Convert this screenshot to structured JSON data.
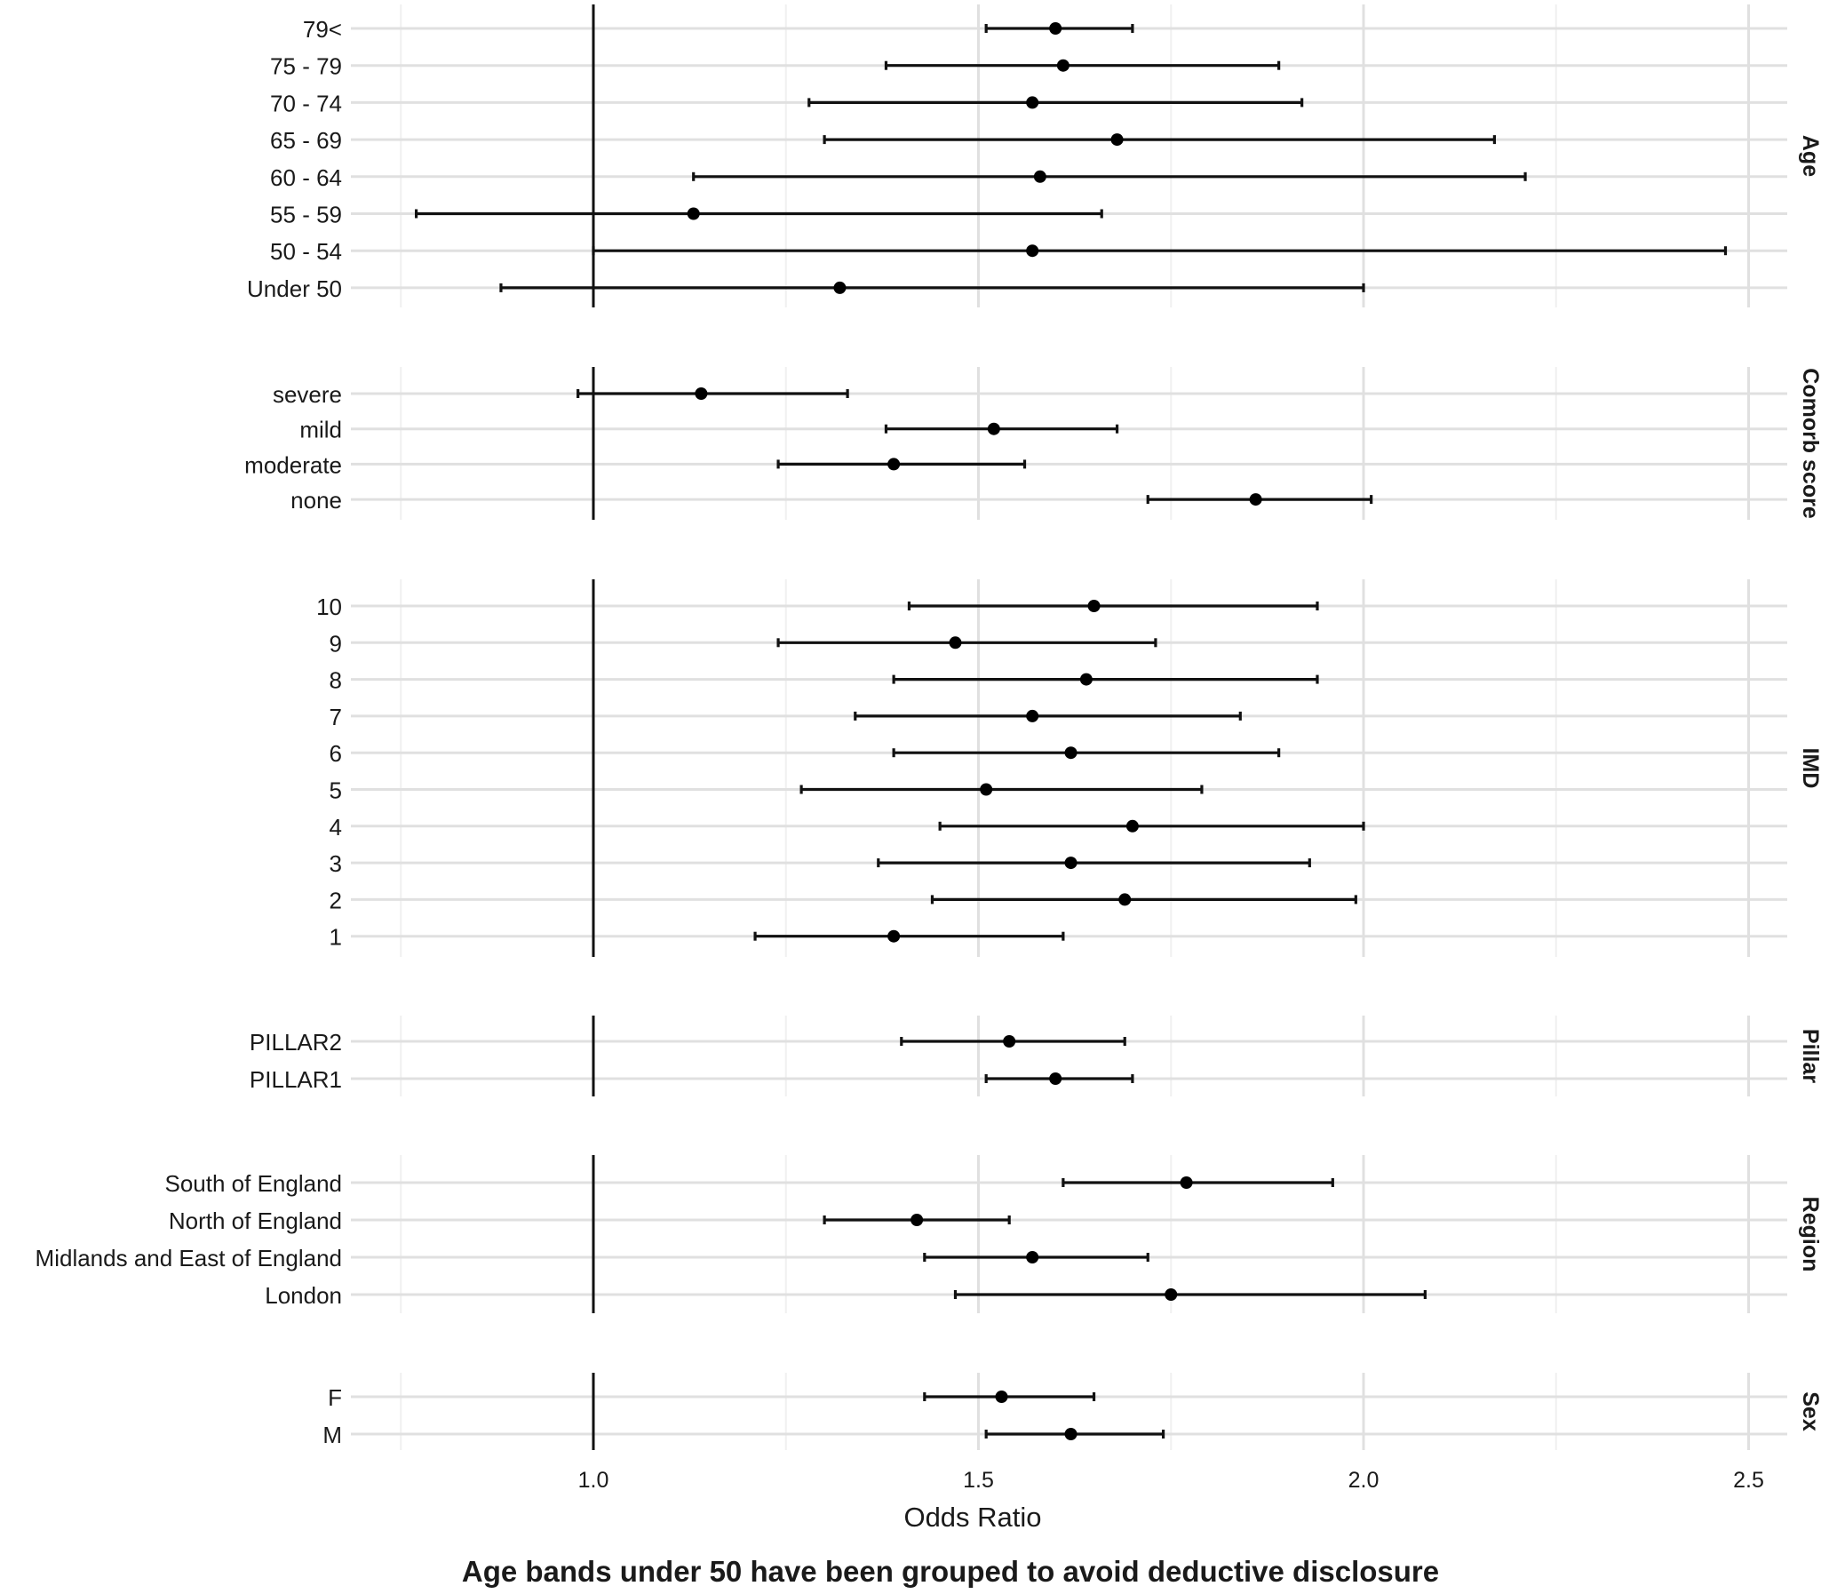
{
  "chart_data": {
    "type": "forest",
    "xlabel": "Odds Ratio",
    "caption": "Age bands under 50 have been grouped to avoid deductive disclosure",
    "xlim": [
      0.75,
      2.55
    ],
    "xticks": [
      1.0,
      1.5,
      2.0,
      2.5
    ],
    "xtick_labels": [
      "1.0",
      "1.5",
      "2.0",
      "2.5"
    ],
    "reference_line": 1.0,
    "grid": true,
    "panels": [
      {
        "facet": "Age",
        "rows": [
          {
            "label": "79<",
            "or": 1.6,
            "lo": 1.51,
            "hi": 1.7
          },
          {
            "label": "75 - 79",
            "or": 1.61,
            "lo": 1.38,
            "hi": 1.89
          },
          {
            "label": "70 - 74",
            "or": 1.57,
            "lo": 1.28,
            "hi": 1.92
          },
          {
            "label": "65 - 69",
            "or": 1.68,
            "lo": 1.3,
            "hi": 2.17
          },
          {
            "label": "60 - 64",
            "or": 1.58,
            "lo": 1.13,
            "hi": 2.21
          },
          {
            "label": "55 - 59",
            "or": 1.13,
            "lo": 0.77,
            "hi": 1.66
          },
          {
            "label": "50 - 54",
            "or": 1.57,
            "lo": 1.0,
            "hi": 2.47
          },
          {
            "label": "Under 50",
            "or": 1.32,
            "lo": 0.88,
            "hi": 2.0
          }
        ]
      },
      {
        "facet": "Comorb score",
        "rows": [
          {
            "label": "severe",
            "or": 1.14,
            "lo": 0.98,
            "hi": 1.33
          },
          {
            "label": "mild",
            "or": 1.52,
            "lo": 1.38,
            "hi": 1.68
          },
          {
            "label": "moderate",
            "or": 1.39,
            "lo": 1.24,
            "hi": 1.56
          },
          {
            "label": "none",
            "or": 1.86,
            "lo": 1.72,
            "hi": 2.01
          }
        ]
      },
      {
        "facet": "IMD",
        "rows": [
          {
            "label": "10",
            "or": 1.65,
            "lo": 1.41,
            "hi": 1.94
          },
          {
            "label": "9",
            "or": 1.47,
            "lo": 1.24,
            "hi": 1.73
          },
          {
            "label": "8",
            "or": 1.64,
            "lo": 1.39,
            "hi": 1.94
          },
          {
            "label": "7",
            "or": 1.57,
            "lo": 1.34,
            "hi": 1.84
          },
          {
            "label": "6",
            "or": 1.62,
            "lo": 1.39,
            "hi": 1.89
          },
          {
            "label": "5",
            "or": 1.51,
            "lo": 1.27,
            "hi": 1.79
          },
          {
            "label": "4",
            "or": 1.7,
            "lo": 1.45,
            "hi": 2.0
          },
          {
            "label": "3",
            "or": 1.62,
            "lo": 1.37,
            "hi": 1.93
          },
          {
            "label": "2",
            "or": 1.69,
            "lo": 1.44,
            "hi": 1.99
          },
          {
            "label": "1",
            "or": 1.39,
            "lo": 1.21,
            "hi": 1.61
          }
        ]
      },
      {
        "facet": "Pillar",
        "rows": [
          {
            "label": "PILLAR2",
            "or": 1.54,
            "lo": 1.4,
            "hi": 1.69
          },
          {
            "label": "PILLAR1",
            "or": 1.6,
            "lo": 1.51,
            "hi": 1.7
          }
        ]
      },
      {
        "facet": "Region",
        "rows": [
          {
            "label": "South of England",
            "or": 1.77,
            "lo": 1.61,
            "hi": 1.96
          },
          {
            "label": "North of England",
            "or": 1.42,
            "lo": 1.3,
            "hi": 1.54
          },
          {
            "label": "Midlands and East of England",
            "or": 1.57,
            "lo": 1.43,
            "hi": 1.72
          },
          {
            "label": "London",
            "or": 1.75,
            "lo": 1.47,
            "hi": 2.08
          }
        ]
      },
      {
        "facet": "Sex",
        "rows": [
          {
            "label": "F",
            "or": 1.53,
            "lo": 1.43,
            "hi": 1.65
          },
          {
            "label": "M",
            "or": 1.62,
            "lo": 1.51,
            "hi": 1.74
          }
        ]
      }
    ]
  }
}
